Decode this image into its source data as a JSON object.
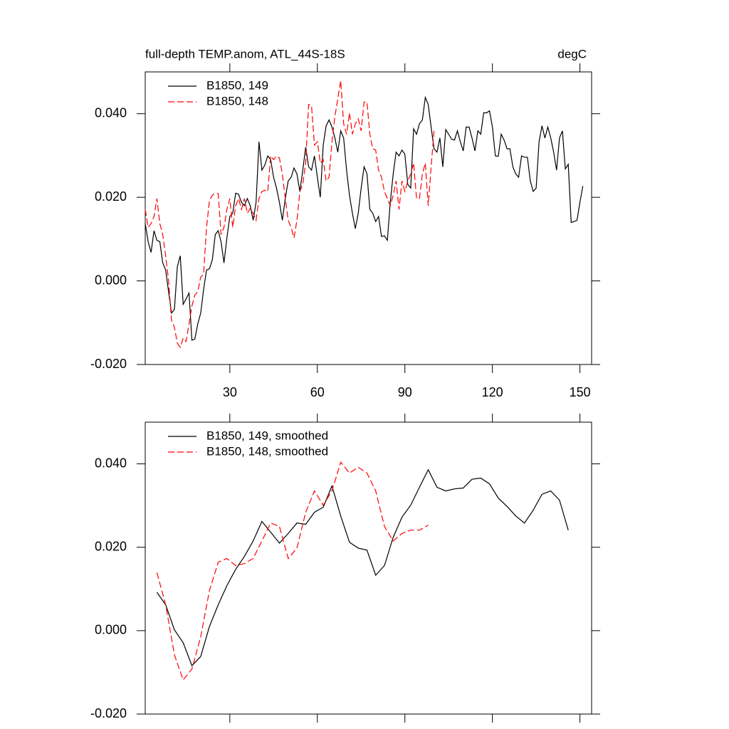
{
  "chart_data": [
    {
      "type": "line",
      "title": "full-depth TEMP.anom, ATL_44S-18S",
      "units_label": "degC",
      "legend": "upper left",
      "xlim": [
        1,
        154
      ],
      "xticks": [
        30,
        60,
        90,
        120,
        150
      ],
      "xtick_labels": true,
      "ylim": [
        -0.02,
        0.05
      ],
      "yticks": [
        {
          "value": -0.02,
          "label": "-0.020"
        },
        {
          "value": 0,
          "label": "0.000"
        },
        {
          "value": 0.02,
          "label": "0.020"
        },
        {
          "value": 0.04,
          "label": "0.040"
        }
      ],
      "x": [
        1,
        2,
        3,
        4,
        5,
        6,
        7,
        8,
        9,
        10,
        11,
        12,
        13,
        14,
        15,
        16,
        17,
        18,
        19,
        20,
        21,
        22,
        23,
        24,
        25,
        26,
        27,
        28,
        29,
        30,
        31,
        32,
        33,
        34,
        35,
        36,
        37,
        38,
        39,
        40,
        41,
        42,
        43,
        44,
        45,
        46,
        47,
        48,
        49,
        50,
        51,
        52,
        53,
        54,
        55,
        56,
        57,
        58,
        59,
        60,
        61,
        62,
        63,
        64,
        65,
        66,
        67,
        68,
        69,
        70,
        71,
        72,
        73,
        74,
        75,
        76,
        77,
        78,
        79,
        80,
        81,
        82,
        83,
        84,
        85,
        86,
        87,
        88,
        89,
        90,
        91,
        92,
        93,
        94,
        95,
        96,
        97,
        98,
        99,
        100,
        101,
        102,
        103,
        104,
        105,
        106,
        107,
        108,
        109,
        110,
        111,
        112,
        113,
        114,
        115,
        116,
        117,
        118,
        119,
        120,
        121,
        122,
        123,
        124,
        125,
        126,
        127,
        128,
        129,
        130,
        131,
        132,
        133,
        134,
        135,
        136,
        137,
        138,
        139,
        140,
        141,
        142,
        143,
        144,
        145,
        146,
        147,
        148,
        149,
        150,
        151
      ],
      "series": [
        {
          "name": "B1850, 149",
          "color": "#000000",
          "linestyle": "solid",
          "values": [
            0.0137,
            0.0094,
            0.0068,
            0.012,
            0.0097,
            0.0094,
            0.0043,
            0.0026,
            -0.0026,
            -0.0077,
            -0.0068,
            0.0034,
            0.006,
            -0.0056,
            -0.0043,
            -0.0029,
            -0.0142,
            -0.0139,
            -0.0103,
            -0.0077,
            -0.0021,
            0.0026,
            0.0029,
            0.0051,
            0.0111,
            0.012,
            0.0094,
            0.0043,
            0.0103,
            0.0154,
            0.0162,
            0.021,
            0.0207,
            0.0188,
            0.018,
            0.0197,
            0.018,
            0.0145,
            0.0188,
            0.0333,
            0.0265,
            0.0277,
            0.0299,
            0.029,
            0.0248,
            0.0222,
            0.0188,
            0.0145,
            0.0197,
            0.0239,
            0.0248,
            0.027,
            0.0256,
            0.0214,
            0.0265,
            0.032,
            0.0273,
            0.0265,
            0.0299,
            0.0248,
            0.02,
            0.0325,
            0.0371,
            0.0385,
            0.0368,
            0.0342,
            0.0308,
            0.0359,
            0.0342,
            0.0265,
            0.0205,
            0.0162,
            0.0125,
            0.0162,
            0.0222,
            0.0273,
            0.0256,
            0.0171,
            0.0162,
            0.0142,
            0.0154,
            0.0106,
            0.0108,
            0.0097,
            0.0188,
            0.0256,
            0.0308,
            0.0299,
            0.0313,
            0.0303,
            0.0231,
            0.0222,
            0.0364,
            0.0351,
            0.0376,
            0.0385,
            0.0439,
            0.0422,
            0.0368,
            0.0316,
            0.0308,
            0.0342,
            0.0273,
            0.0362,
            0.0351,
            0.0339,
            0.0337,
            0.0359,
            0.0333,
            0.0311,
            0.0368,
            0.0368,
            0.0342,
            0.0311,
            0.0359,
            0.0351,
            0.0402,
            0.0402,
            0.0407,
            0.0368,
            0.0299,
            0.0298,
            0.0351,
            0.0337,
            0.0316,
            0.0316,
            0.0273,
            0.0256,
            0.0248,
            0.0299,
            0.0296,
            0.0296,
            0.0239,
            0.0214,
            0.0222,
            0.0333,
            0.0371,
            0.0342,
            0.0368,
            0.0342,
            0.0308,
            0.0265,
            0.0342,
            0.0359,
            0.0268,
            0.0279,
            0.014,
            0.0142,
            0.0145,
            0.0188,
            0.0227
          ]
        },
        {
          "name": "B1850, 148",
          "color": "#ff0000",
          "linestyle": "dashed",
          "values": [
            0.0171,
            0.0128,
            0.0137,
            0.0154,
            0.0197,
            0.0137,
            0.0111,
            0.006,
            0.0,
            -0.0094,
            -0.0111,
            -0.0149,
            -0.0159,
            -0.0137,
            -0.0145,
            -0.0103,
            -0.006,
            -0.0034,
            -0.0026,
            0.0009,
            0.0017,
            0.0128,
            0.0192,
            0.0205,
            0.0209,
            0.0209,
            0.0111,
            0.0128,
            0.0171,
            0.0197,
            0.0128,
            0.018,
            0.0197,
            0.0171,
            0.0197,
            0.0162,
            0.0174,
            0.0162,
            0.0145,
            0.0197,
            0.0214,
            0.0217,
            0.0214,
            0.0299,
            0.029,
            0.0299,
            0.0294,
            0.0256,
            0.0197,
            0.0145,
            0.0128,
            0.0103,
            0.0145,
            0.0214,
            0.0231,
            0.0282,
            0.0422,
            0.0419,
            0.0325,
            0.0333,
            0.0282,
            0.029,
            0.0239,
            0.0248,
            0.0333,
            0.0393,
            0.0436,
            0.0479,
            0.0376,
            0.0351,
            0.0402,
            0.0351,
            0.0376,
            0.0388,
            0.0359,
            0.0428,
            0.0428,
            0.0351,
            0.0316,
            0.0313,
            0.0265,
            0.0248,
            0.0214,
            0.0197,
            0.018,
            0.0205,
            0.0239,
            0.0171,
            0.0239,
            0.0214,
            0.0239,
            0.0256,
            0.0282,
            0.0197,
            0.0197,
            0.0256,
            0.0282,
            0.018,
            0.0273,
            0.0359,
            null,
            null,
            null,
            null,
            null,
            null,
            null,
            null,
            null,
            null,
            null,
            null,
            null,
            null,
            null,
            null,
            null,
            null,
            null,
            null,
            null,
            null,
            null,
            null,
            null,
            null,
            null,
            null,
            null,
            null,
            null,
            null,
            null,
            null,
            null,
            null,
            null,
            null,
            null,
            null,
            null,
            null,
            null,
            null,
            null,
            null,
            null,
            null,
            null,
            null,
            null
          ]
        }
      ]
    },
    {
      "type": "line",
      "legend": "upper left",
      "xlim": [
        1,
        154
      ],
      "xticks": [
        30,
        60,
        90,
        120,
        150
      ],
      "xtick_labels": false,
      "ylim": [
        -0.02,
        0.05
      ],
      "yticks": [
        {
          "value": -0.02,
          "label": "-0.020"
        },
        {
          "value": 0,
          "label": "0.000"
        },
        {
          "value": 0.02,
          "label": "0.020"
        },
        {
          "value": 0.04,
          "label": "0.040"
        }
      ],
      "x": [
        5,
        8,
        11,
        14,
        17,
        20,
        23,
        26,
        29,
        32,
        35,
        38,
        41,
        44,
        47,
        50,
        53,
        56,
        59,
        62,
        65,
        68,
        71,
        74,
        77,
        80,
        83,
        86,
        89,
        92,
        95,
        98,
        101,
        104,
        107,
        110,
        113,
        116,
        119,
        122,
        125,
        128,
        131,
        134,
        137,
        140,
        143,
        146
      ],
      "series": [
        {
          "name": "B1850, 149, smoothed",
          "color": "#000000",
          "linestyle": "solid",
          "values": [
            0.0092,
            0.0062,
            0.0002,
            -0.0029,
            -0.0084,
            -0.0062,
            0.001,
            0.0062,
            0.0108,
            0.0147,
            0.0178,
            0.0215,
            0.0262,
            0.0236,
            0.021,
            0.0233,
            0.0258,
            0.0255,
            0.0284,
            0.0296,
            0.0347,
            0.0275,
            0.0212,
            0.0198,
            0.0193,
            0.0133,
            0.0156,
            0.0224,
            0.0272,
            0.0301,
            0.0344,
            0.0386,
            0.0344,
            0.0335,
            0.034,
            0.0342,
            0.0363,
            0.0366,
            0.0352,
            0.0318,
            0.0298,
            0.0275,
            0.0258,
            0.0289,
            0.0327,
            0.0335,
            0.0313,
            0.0241
          ]
        },
        {
          "name": "B1850, 148, smoothed",
          "color": "#ff0000",
          "linestyle": "dashed",
          "values": [
            0.0139,
            0.0062,
            -0.0058,
            -0.0118,
            -0.0092,
            -0.0015,
            0.0096,
            0.0164,
            0.0173,
            0.0156,
            0.0161,
            0.0173,
            0.0215,
            0.0258,
            0.025,
            0.0173,
            0.0198,
            0.0284,
            0.0335,
            0.0301,
            0.0335,
            0.0404,
            0.0378,
            0.0392,
            0.0378,
            0.0335,
            0.025,
            0.0215,
            0.0233,
            0.0241,
            0.0241,
            0.0253,
            null,
            null,
            null,
            null,
            null,
            null,
            null,
            null,
            null,
            null,
            null,
            null,
            null,
            null,
            null,
            null
          ]
        }
      ]
    }
  ]
}
